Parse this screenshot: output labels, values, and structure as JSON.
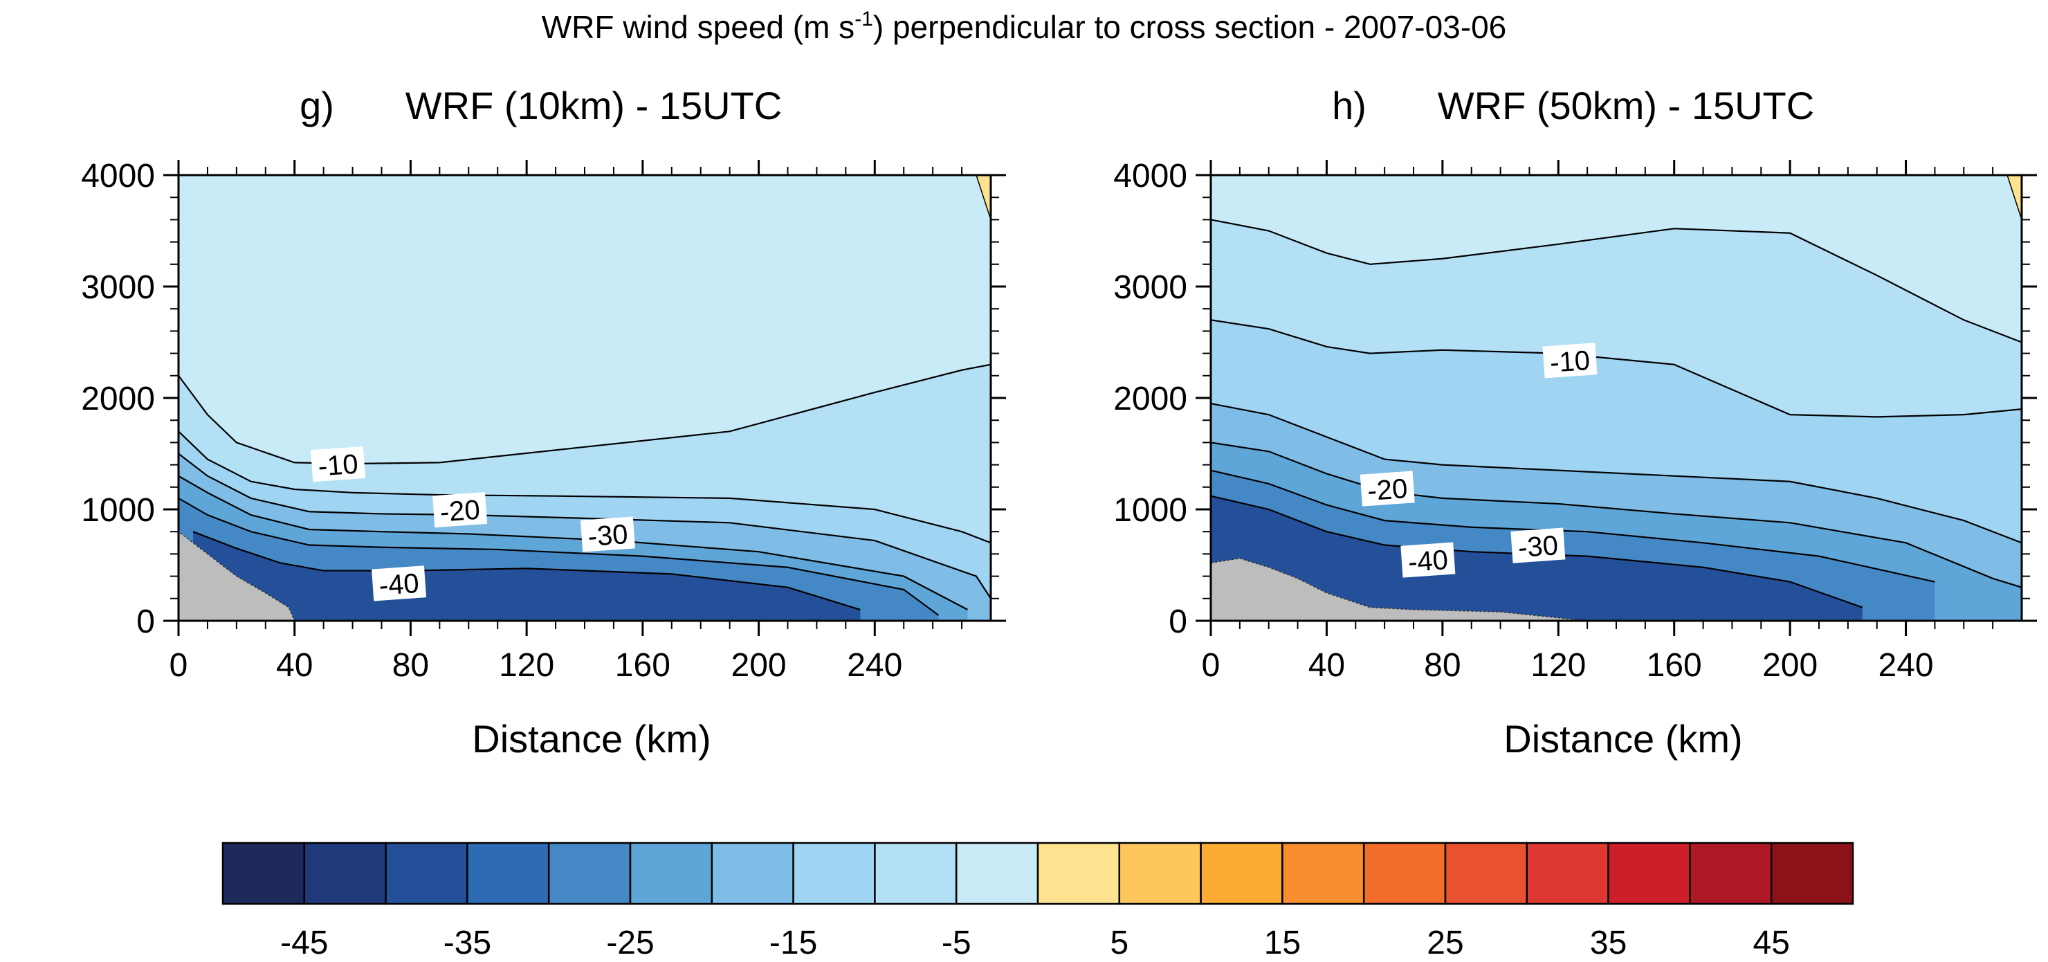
{
  "figure": {
    "title_main": "WRF wind speed (m s",
    "title_sup": "-1",
    "title_end": ") perpendicular to cross section - 2007-03-06"
  },
  "chart_data": [
    {
      "type": "contour",
      "panel": "g)",
      "title": "WRF (10km) - 15UTC",
      "xlabel": "Distance (km)",
      "ylabel": "",
      "xlim": [
        0,
        280
      ],
      "ylim": [
        0,
        4000
      ],
      "x_ticks": [
        0,
        40,
        80,
        120,
        160,
        200,
        240
      ],
      "y_ticks": [
        0,
        1000,
        2000,
        3000,
        4000
      ],
      "terrain": {
        "x": [
          0,
          5,
          10,
          20,
          30,
          38,
          40
        ],
        "top": [
          800,
          700,
          600,
          400,
          250,
          120,
          0
        ]
      },
      "contours": [
        {
          "level": -10,
          "x": [
            0,
            10,
            20,
            40,
            60,
            90,
            140,
            190,
            240,
            270,
            280
          ],
          "y": [
            2200,
            1850,
            1600,
            1420,
            1410,
            1420,
            1560,
            1700,
            2050,
            2250,
            2300
          ]
        },
        {
          "level": -15,
          "x": [
            0,
            10,
            25,
            40,
            60,
            90,
            130,
            190,
            240,
            270,
            280
          ],
          "y": [
            1700,
            1450,
            1250,
            1180,
            1150,
            1130,
            1120,
            1100,
            1000,
            800,
            700
          ]
        },
        {
          "level": -20,
          "x": [
            0,
            10,
            25,
            45,
            70,
            100,
            140,
            190,
            240,
            275,
            280
          ],
          "y": [
            1500,
            1300,
            1100,
            980,
            960,
            950,
            920,
            880,
            720,
            400,
            200
          ]
        },
        {
          "level": -25,
          "x": [
            0,
            10,
            25,
            45,
            70,
            100,
            150,
            200,
            250,
            272
          ],
          "y": [
            1300,
            1150,
            950,
            820,
            800,
            780,
            720,
            620,
            400,
            100
          ]
        },
        {
          "level": -30,
          "x": [
            0,
            10,
            25,
            45,
            70,
            110,
            160,
            210,
            250,
            262
          ],
          "y": [
            1100,
            950,
            800,
            680,
            660,
            640,
            580,
            480,
            280,
            50
          ]
        },
        {
          "level": -35,
          "x": [
            5,
            20,
            35,
            50,
            80,
            120,
            170,
            210,
            235
          ],
          "y": [
            800,
            650,
            520,
            450,
            450,
            470,
            420,
            300,
            100
          ]
        }
      ],
      "labels": [
        {
          "text": "-10",
          "x": 55,
          "y": 1400
        },
        {
          "text": "-20",
          "x": 97,
          "y": 990
        },
        {
          "text": "-30",
          "x": 148,
          "y": 770
        },
        {
          "text": "-40",
          "x": 76,
          "y": 330
        }
      ]
    },
    {
      "type": "contour",
      "panel": "h)",
      "title": "WRF (50km) - 15UTC",
      "xlabel": "Distance (km)",
      "ylabel": "",
      "xlim": [
        0,
        280
      ],
      "ylim": [
        0,
        4000
      ],
      "x_ticks": [
        0,
        40,
        80,
        120,
        160,
        200,
        240
      ],
      "y_ticks": [
        0,
        1000,
        2000,
        3000,
        4000
      ],
      "terrain": {
        "x": [
          0,
          10,
          20,
          30,
          40,
          55,
          70,
          100,
          130
        ],
        "top": [
          520,
          560,
          480,
          380,
          250,
          120,
          100,
          80,
          0
        ]
      },
      "contours": [
        {
          "level": -10,
          "x": [
            0,
            20,
            40,
            55,
            80,
            120,
            160,
            200,
            230,
            260,
            280
          ],
          "y": [
            3600,
            3500,
            3300,
            3200,
            3250,
            3380,
            3520,
            3480,
            3100,
            2700,
            2500
          ]
        },
        {
          "level": -15,
          "x": [
            0,
            20,
            40,
            55,
            80,
            120,
            160,
            200,
            230,
            260,
            280
          ],
          "y": [
            2700,
            2620,
            2460,
            2400,
            2430,
            2400,
            2300,
            1850,
            1830,
            1850,
            1900
          ]
        },
        {
          "level": -20,
          "x": [
            0,
            20,
            40,
            60,
            80,
            120,
            160,
            200,
            230,
            260,
            280
          ],
          "y": [
            1950,
            1850,
            1650,
            1450,
            1400,
            1350,
            1300,
            1250,
            1100,
            900,
            700
          ]
        },
        {
          "level": -25,
          "x": [
            0,
            20,
            40,
            60,
            80,
            120,
            160,
            200,
            240,
            270,
            280
          ],
          "y": [
            1600,
            1520,
            1320,
            1160,
            1100,
            1050,
            960,
            880,
            700,
            380,
            300
          ]
        },
        {
          "level": -30,
          "x": [
            0,
            20,
            40,
            60,
            90,
            130,
            170,
            210,
            250
          ],
          "y": [
            1350,
            1230,
            1040,
            900,
            840,
            800,
            700,
            580,
            350
          ]
        },
        {
          "level": -35,
          "x": [
            0,
            20,
            40,
            60,
            90,
            130,
            170,
            200,
            225
          ],
          "y": [
            1120,
            1000,
            800,
            680,
            620,
            580,
            480,
            350,
            120
          ]
        }
      ],
      "labels": [
        {
          "text": "-10",
          "x": 124,
          "y": 2330
        },
        {
          "text": "-20",
          "x": 61,
          "y": 1180
        },
        {
          "text": "-30",
          "x": 113,
          "y": 670
        },
        {
          "text": "-40",
          "x": 75,
          "y": 540
        }
      ]
    }
  ],
  "colorbar": {
    "colors": [
      "#1e2a5c",
      "#1f3a7a",
      "#24509a",
      "#2f6bb4",
      "#4588c6",
      "#5fa6d8",
      "#7fbde6",
      "#9fd5f2",
      "#b4e0f6",
      "#c9ebf8",
      "#fde38f",
      "#fdc75c",
      "#fcac34",
      "#f98e2e",
      "#f26d2a",
      "#e95230",
      "#dd3831",
      "#cc1f2a",
      "#ad1924",
      "#8c1219"
    ],
    "tick_labels": [
      "-45",
      "-35",
      "-25",
      "-15",
      "-5",
      "5",
      "15",
      "25",
      "35",
      "45"
    ]
  },
  "colors": {
    "terrain": "#bdbdbd",
    "contour_line": "#000000"
  }
}
